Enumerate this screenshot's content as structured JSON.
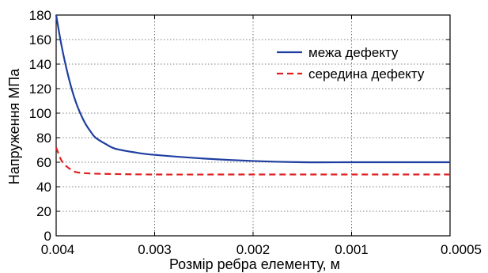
{
  "chart_data": {
    "type": "line",
    "xlabel": "Розмір ребра елементу, м",
    "ylabel": "Напруження МПа",
    "x_ticks": [
      "0.004",
      "0.003",
      "0.002",
      "0.001",
      "0.0005"
    ],
    "y_ticks": [
      0,
      20,
      40,
      60,
      80,
      100,
      120,
      140,
      160,
      180
    ],
    "ylim": [
      0,
      180
    ],
    "grid": true,
    "legend_position": "top-right",
    "series": [
      {
        "name": "межа дефекту",
        "color": "#1f3fa0",
        "style": "solid",
        "x": [
          "0.004",
          "0.00395",
          "0.0039",
          "0.00385",
          "0.0038",
          "0.00375",
          "0.0037",
          "0.00365",
          "0.0036",
          "0.0035",
          "0.0034",
          "0.0032",
          "0.003",
          "0.0025",
          "0.002",
          "0.0015",
          "0.001",
          "0.0008",
          "0.0005"
        ],
        "values": [
          180,
          157,
          138,
          122,
          109,
          99,
          91,
          85,
          80,
          75,
          71,
          68,
          66,
          63,
          61,
          60,
          60,
          60,
          60
        ]
      },
      {
        "name": "середина дефекту",
        "color": "#e02020",
        "style": "dashed",
        "x": [
          "0.004",
          "0.00395",
          "0.0039",
          "0.00385",
          "0.0038",
          "0.0037",
          "0.0035",
          "0.003",
          "0.002",
          "0.001",
          "0.0005"
        ],
        "values": [
          72,
          62,
          57,
          54,
          52,
          51,
          50.5,
          50,
          50,
          50,
          50
        ]
      }
    ]
  }
}
